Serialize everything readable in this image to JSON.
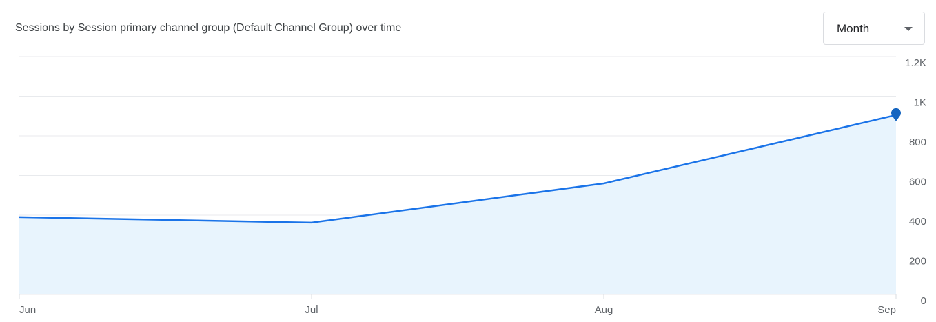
{
  "card": {
    "title": "Sessions by Session primary channel group (Default Channel Group) over time"
  },
  "period_select": {
    "selected": "Month",
    "icon": "arrow-drop-down-icon"
  },
  "colors": {
    "line": "#1a73e8",
    "area": "#e8f4fd",
    "grid": "#e8eaed",
    "marker": "#1565c0"
  },
  "chart_data": {
    "type": "area",
    "x": [
      "Jun",
      "Jul",
      "Aug",
      "Sep"
    ],
    "series": [
      {
        "values": [
          390,
          362,
          560,
          905
        ]
      }
    ],
    "ylim": [
      0,
      1200
    ],
    "yticks": [
      0,
      200,
      400,
      600,
      800,
      1000,
      1200
    ],
    "ytick_labels": [
      "0",
      "200",
      "400",
      "600",
      "800",
      "1K",
      "1.2K"
    ],
    "y_axis_position": "right",
    "grid": true,
    "last_point_marker": true
  }
}
